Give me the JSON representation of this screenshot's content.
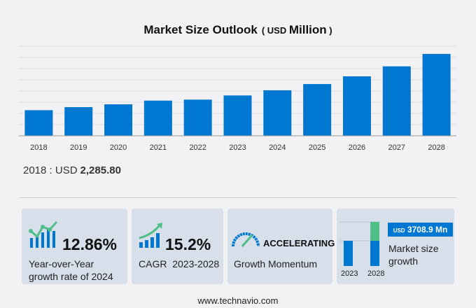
{
  "header": {
    "title": "Market Size Outlook",
    "unit_prefix": "( USD",
    "unit_main": "Million",
    "unit_suffix": ")"
  },
  "chart_data": {
    "type": "bar",
    "title": "Market Size Outlook (USD Million)",
    "categories": [
      "2018",
      "2019",
      "2020",
      "2021",
      "2022",
      "2023",
      "2024",
      "2025",
      "2026",
      "2027",
      "2028"
    ],
    "values": [
      2285.8,
      2560,
      2810,
      3141,
      3229,
      3603,
      4066,
      4621,
      5308,
      6201,
      7312
    ],
    "ylim": [
      0,
      8000
    ],
    "grid": true,
    "color": "#0077d0"
  },
  "base": {
    "label": "2018 : USD",
    "value": "2,285.80"
  },
  "cards": {
    "yoy": {
      "value": "12.86%",
      "label1": "Year-over-Year",
      "label2": "growth rate of 2024"
    },
    "cagr": {
      "value": "15.2%",
      "label": "CAGR  2023-2028"
    },
    "momentum": {
      "value": "ACCELERATING",
      "label": "Growth Momentum"
    },
    "growth": {
      "badge_prefix": "USD",
      "badge_value": "3708.9 Mn",
      "label1": "Market size",
      "label2": "growth",
      "year_start": "2023",
      "year_end": "2028"
    }
  },
  "colors": {
    "bar": "#0077d0",
    "green": "#4fbf8a",
    "card": "#d6dfea"
  },
  "footer": "www.technavio.com"
}
